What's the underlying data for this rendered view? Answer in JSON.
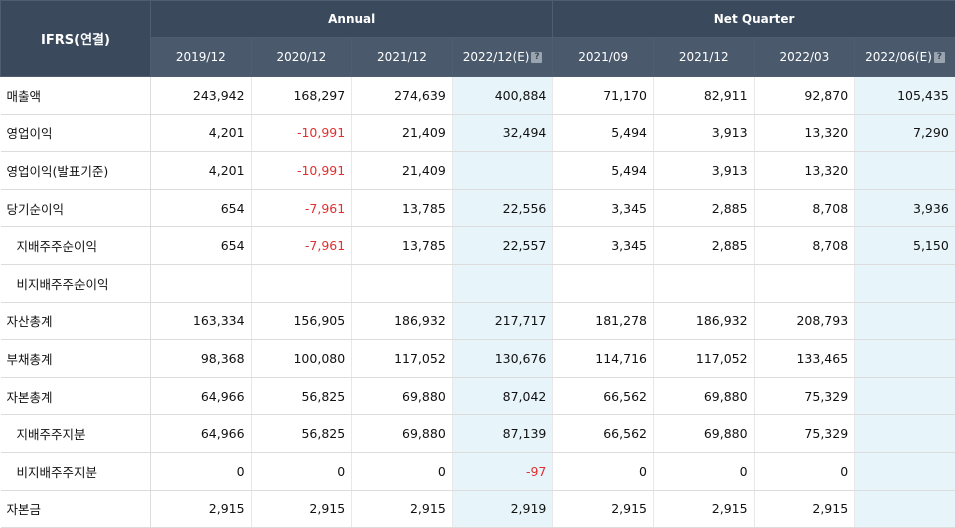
{
  "header": {
    "ifrs_label": "IFRS(연결)",
    "annual_label": "Annual",
    "quarter_label": "Net Quarter",
    "periods": [
      "2019/12",
      "2020/12",
      "2021/12",
      "2022/12(E)",
      "2021/09",
      "2021/12",
      "2022/03",
      "2022/06(E)"
    ],
    "help_glyph": "?"
  },
  "rows": [
    {
      "label": "매출액",
      "values": [
        "243,942",
        "168,297",
        "274,639",
        "400,884",
        "71,170",
        "82,911",
        "92,870",
        "105,435"
      ]
    },
    {
      "label": "영업이익",
      "values": [
        "4,201",
        "-10,991",
        "21,409",
        "32,494",
        "5,494",
        "3,913",
        "13,320",
        "7,290"
      ]
    },
    {
      "label": "영업이익(발표기준)",
      "values": [
        "4,201",
        "-10,991",
        "21,409",
        "",
        "5,494",
        "3,913",
        "13,320",
        ""
      ]
    },
    {
      "label": "당기순이익",
      "values": [
        "654",
        "-7,961",
        "13,785",
        "22,556",
        "3,345",
        "2,885",
        "8,708",
        "3,936"
      ]
    },
    {
      "label": "지배주주순이익",
      "values": [
        "654",
        "-7,961",
        "13,785",
        "22,557",
        "3,345",
        "2,885",
        "8,708",
        "5,150"
      ]
    },
    {
      "label": "비지배주주순이익",
      "values": [
        "",
        "",
        "",
        "",
        "",
        "",
        "",
        ""
      ]
    },
    {
      "label": "자산총계",
      "values": [
        "163,334",
        "156,905",
        "186,932",
        "217,717",
        "181,278",
        "186,932",
        "208,793",
        ""
      ]
    },
    {
      "label": "부채총계",
      "values": [
        "98,368",
        "100,080",
        "117,052",
        "130,676",
        "114,716",
        "117,052",
        "133,465",
        ""
      ]
    },
    {
      "label": "자본총계",
      "values": [
        "64,966",
        "56,825",
        "69,880",
        "87,042",
        "66,562",
        "69,880",
        "75,329",
        ""
      ]
    },
    {
      "label": "지배주주지분",
      "values": [
        "64,966",
        "56,825",
        "69,880",
        "87,139",
        "66,562",
        "69,880",
        "75,329",
        ""
      ]
    },
    {
      "label": "비지배주주지분",
      "values": [
        "0",
        "0",
        "0",
        "-97",
        "0",
        "0",
        "0",
        ""
      ]
    },
    {
      "label": "자본금",
      "values": [
        "2,915",
        "2,915",
        "2,915",
        "2,919",
        "2,915",
        "2,915",
        "2,915",
        ""
      ]
    }
  ]
}
